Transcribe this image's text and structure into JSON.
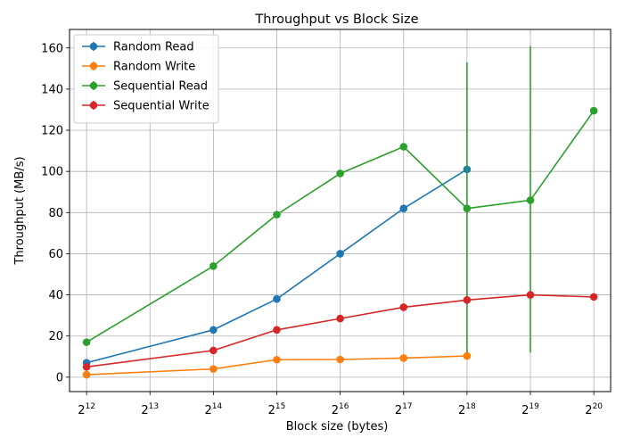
{
  "chart_data": {
    "type": "line",
    "title": "Throughput vs Block Size",
    "xlabel": "Block size (bytes)",
    "ylabel": "Throughput (MB/s)",
    "x_scale": "log2",
    "xlim": [
      3400,
      1260000
    ],
    "ylim": [
      -7,
      169
    ],
    "xticks": [
      4096,
      8192,
      16384,
      32768,
      65536,
      131072,
      262144,
      524288,
      1048576
    ],
    "xtick_base": "2",
    "xtick_exponents": [
      "12",
      "13",
      "14",
      "15",
      "16",
      "17",
      "18",
      "19",
      "20"
    ],
    "yticks": [
      0,
      20,
      40,
      60,
      80,
      100,
      120,
      140,
      160
    ],
    "ytick_labels": [
      "0",
      "20",
      "40",
      "60",
      "80",
      "100",
      "120",
      "140",
      "160"
    ],
    "grid": true,
    "legend_position": "top-left",
    "series": [
      {
        "name": "Random Read",
        "color": "#1f77b4",
        "points": [
          {
            "x": 4096,
            "y": 7
          },
          {
            "x": 16384,
            "y": 23
          },
          {
            "x": 32768,
            "y": 38
          },
          {
            "x": 65536,
            "y": 60
          },
          {
            "x": 131072,
            "y": 82
          },
          {
            "x": 262144,
            "y": 101
          }
        ]
      },
      {
        "name": "Random Write",
        "color": "#ff7f0e",
        "points": [
          {
            "x": 4096,
            "y": 1.2
          },
          {
            "x": 16384,
            "y": 4
          },
          {
            "x": 32768,
            "y": 8.5
          },
          {
            "x": 65536,
            "y": 8.6
          },
          {
            "x": 131072,
            "y": 9.3
          },
          {
            "x": 262144,
            "y": 10.3
          }
        ]
      },
      {
        "name": "Sequential Read",
        "color": "#2ca02c",
        "points": [
          {
            "x": 4096,
            "y": 17
          },
          {
            "x": 16384,
            "y": 54
          },
          {
            "x": 32768,
            "y": 79
          },
          {
            "x": 65536,
            "y": 99
          },
          {
            "x": 131072,
            "y": 112
          },
          {
            "x": 262144,
            "y": 82,
            "err_low": 12,
            "err_high": 153
          },
          {
            "x": 524288,
            "y": 86,
            "err_low": 12,
            "err_high": 161
          },
          {
            "x": 1048576,
            "y": 129.5
          }
        ]
      },
      {
        "name": "Sequential Write",
        "color": "#d62728",
        "points": [
          {
            "x": 4096,
            "y": 5
          },
          {
            "x": 16384,
            "y": 13
          },
          {
            "x": 32768,
            "y": 23
          },
          {
            "x": 65536,
            "y": 28.5
          },
          {
            "x": 131072,
            "y": 34
          },
          {
            "x": 262144,
            "y": 37.5
          },
          {
            "x": 524288,
            "y": 40
          },
          {
            "x": 1048576,
            "y": 39
          }
        ]
      }
    ]
  }
}
